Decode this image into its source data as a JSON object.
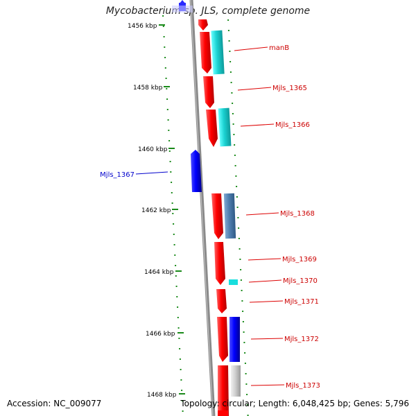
{
  "title": "Mycobacterium sp. JLS, complete genome",
  "footer": {
    "accession": "Accession: NC_009077",
    "summary": "Topology: circular; Length: 6,048,425 bp; Genes: 5,796"
  },
  "colors": {
    "forward_cds": "#ff0000",
    "reverse_cds": "#0000ff",
    "tick": "#1a8a1a",
    "backbone": "#888888"
  },
  "ticks": [
    {
      "label": "1456 kbp"
    },
    {
      "label": "1458 kbp"
    },
    {
      "label": "1460 kbp"
    },
    {
      "label": "1462 kbp"
    },
    {
      "label": "1464 kbp"
    },
    {
      "label": "1466 kbp"
    },
    {
      "label": "1468 kbp"
    }
  ],
  "genes": [
    {
      "label": "manB",
      "strand": "+",
      "color": "#cc0000"
    },
    {
      "label": "Mjls_1365",
      "strand": "+",
      "color": "#cc0000"
    },
    {
      "label": "Mjls_1366",
      "strand": "+",
      "color": "#cc0000"
    },
    {
      "label": "Mjls_1367",
      "strand": "-",
      "color": "#0000cc"
    },
    {
      "label": "Mjls_1368",
      "strand": "+",
      "color": "#cc0000"
    },
    {
      "label": "Mjls_1369",
      "strand": "+",
      "color": "#cc0000"
    },
    {
      "label": "Mjls_1370",
      "strand": "+",
      "color": "#cc0000"
    },
    {
      "label": "Mjls_1371",
      "strand": "+",
      "color": "#cc0000"
    },
    {
      "label": "Mjls_1372",
      "strand": "+",
      "color": "#cc0000"
    },
    {
      "label": "Mjls_1373",
      "strand": "+",
      "color": "#cc0000"
    }
  ]
}
